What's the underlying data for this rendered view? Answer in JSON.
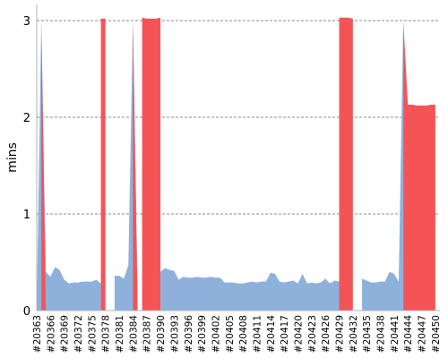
{
  "chart_data": {
    "type": "area",
    "title": "",
    "xlabel": "",
    "ylabel": "mins",
    "ylim": [
      0,
      3.2
    ],
    "yticks": [
      0,
      1,
      2,
      3
    ],
    "grid": true,
    "colors": {
      "normal": "#8eb1dc",
      "failed": "#f45456",
      "grid": "#8c8c8c"
    },
    "x_labels": [
      "#20363",
      "#20366",
      "#20369",
      "#20372",
      "#20375",
      "#20378",
      "#20381",
      "#20384",
      "#20387",
      "#20390",
      "#20393",
      "#20396",
      "#20399",
      "#20402",
      "#20405",
      "#20408",
      "#20411",
      "#20414",
      "#20417",
      "#20420",
      "#20423",
      "#20426",
      "#20429",
      "#20432",
      "#20435",
      "#20438",
      "#20441",
      "#20444",
      "#20447",
      "#20450"
    ],
    "builds_start": 20363,
    "builds_end": 20451,
    "series": [
      {
        "key": "normal",
        "points": [
          [
            20363,
            0.0
          ],
          [
            20364,
            3.0
          ],
          [
            20365,
            0.4
          ],
          [
            20366,
            0.35
          ],
          [
            20367,
            0.45
          ],
          [
            20368,
            0.42
          ],
          [
            20369,
            0.32
          ],
          [
            20370,
            0.28
          ],
          [
            20371,
            0.29
          ],
          [
            20372,
            0.29
          ],
          [
            20373,
            0.3
          ],
          [
            20374,
            0.3
          ],
          [
            20375,
            0.3
          ],
          [
            20376,
            0.32
          ],
          [
            20377,
            0.28
          ],
          [
            20380,
            0.36
          ],
          [
            20381,
            0.36
          ],
          [
            20382,
            0.33
          ],
          [
            20383,
            0.47
          ],
          [
            20384,
            3.0
          ],
          [
            20385,
            0.3
          ],
          [
            20390,
            0.4
          ],
          [
            20391,
            0.44
          ],
          [
            20392,
            0.42
          ],
          [
            20393,
            0.41
          ],
          [
            20394,
            0.32
          ],
          [
            20395,
            0.35
          ],
          [
            20396,
            0.34
          ],
          [
            20397,
            0.34
          ],
          [
            20398,
            0.35
          ],
          [
            20399,
            0.34
          ],
          [
            20400,
            0.34
          ],
          [
            20401,
            0.35
          ],
          [
            20402,
            0.34
          ],
          [
            20403,
            0.34
          ],
          [
            20404,
            0.29
          ],
          [
            20405,
            0.29
          ],
          [
            20406,
            0.29
          ],
          [
            20407,
            0.28
          ],
          [
            20408,
            0.28
          ],
          [
            20409,
            0.29
          ],
          [
            20410,
            0.3
          ],
          [
            20411,
            0.29
          ],
          [
            20412,
            0.3
          ],
          [
            20413,
            0.3
          ],
          [
            20414,
            0.39
          ],
          [
            20415,
            0.38
          ],
          [
            20416,
            0.3
          ],
          [
            20417,
            0.29
          ],
          [
            20418,
            0.3
          ],
          [
            20419,
            0.31
          ],
          [
            20420,
            0.28
          ],
          [
            20421,
            0.38
          ],
          [
            20422,
            0.28
          ],
          [
            20423,
            0.29
          ],
          [
            20424,
            0.28
          ],
          [
            20425,
            0.29
          ],
          [
            20426,
            0.33
          ],
          [
            20427,
            0.28
          ],
          [
            20428,
            0.31
          ],
          [
            20429,
            0.3
          ],
          [
            20434,
            0.33
          ],
          [
            20435,
            0.31
          ],
          [
            20436,
            0.29
          ],
          [
            20437,
            0.29
          ],
          [
            20438,
            0.3
          ],
          [
            20439,
            0.3
          ],
          [
            20440,
            0.4
          ],
          [
            20441,
            0.38
          ],
          [
            20442,
            0.3
          ],
          [
            20443,
            3.0
          ]
        ]
      },
      {
        "key": "failed",
        "segments": [
          [
            [
              20364,
              0.0
            ],
            [
              20364,
              3.0
            ],
            [
              20365,
              0.0
            ]
          ],
          [
            [
              20377,
              0.0
            ],
            [
              20377,
              3.02
            ],
            [
              20378,
              3.02
            ],
            [
              20378,
              0.0
            ]
          ],
          [
            [
              20384,
              0.0
            ],
            [
              20384,
              3.0
            ],
            [
              20385,
              0.0
            ]
          ],
          [
            [
              20386,
              0.0
            ],
            [
              20386,
              3.03
            ],
            [
              20387,
              3.02
            ],
            [
              20388,
              3.02
            ],
            [
              20389,
              3.02
            ],
            [
              20390,
              3.03
            ],
            [
              20390,
              0.0
            ]
          ],
          [
            [
              20429,
              0.0
            ],
            [
              20429,
              3.03
            ],
            [
              20430,
              3.03
            ],
            [
              20431,
              3.03
            ],
            [
              20432,
              3.02
            ],
            [
              20432,
              0.0
            ]
          ],
          [
            [
              20443,
              0.0
            ],
            [
              20443,
              3.0
            ],
            [
              20444,
              2.13
            ],
            [
              20445,
              2.13
            ],
            [
              20446,
              2.12
            ],
            [
              20447,
              2.12
            ],
            [
              20448,
              2.12
            ],
            [
              20449,
              2.13
            ],
            [
              20450,
              2.13
            ],
            [
              20450,
              0.0
            ]
          ]
        ]
      }
    ]
  }
}
